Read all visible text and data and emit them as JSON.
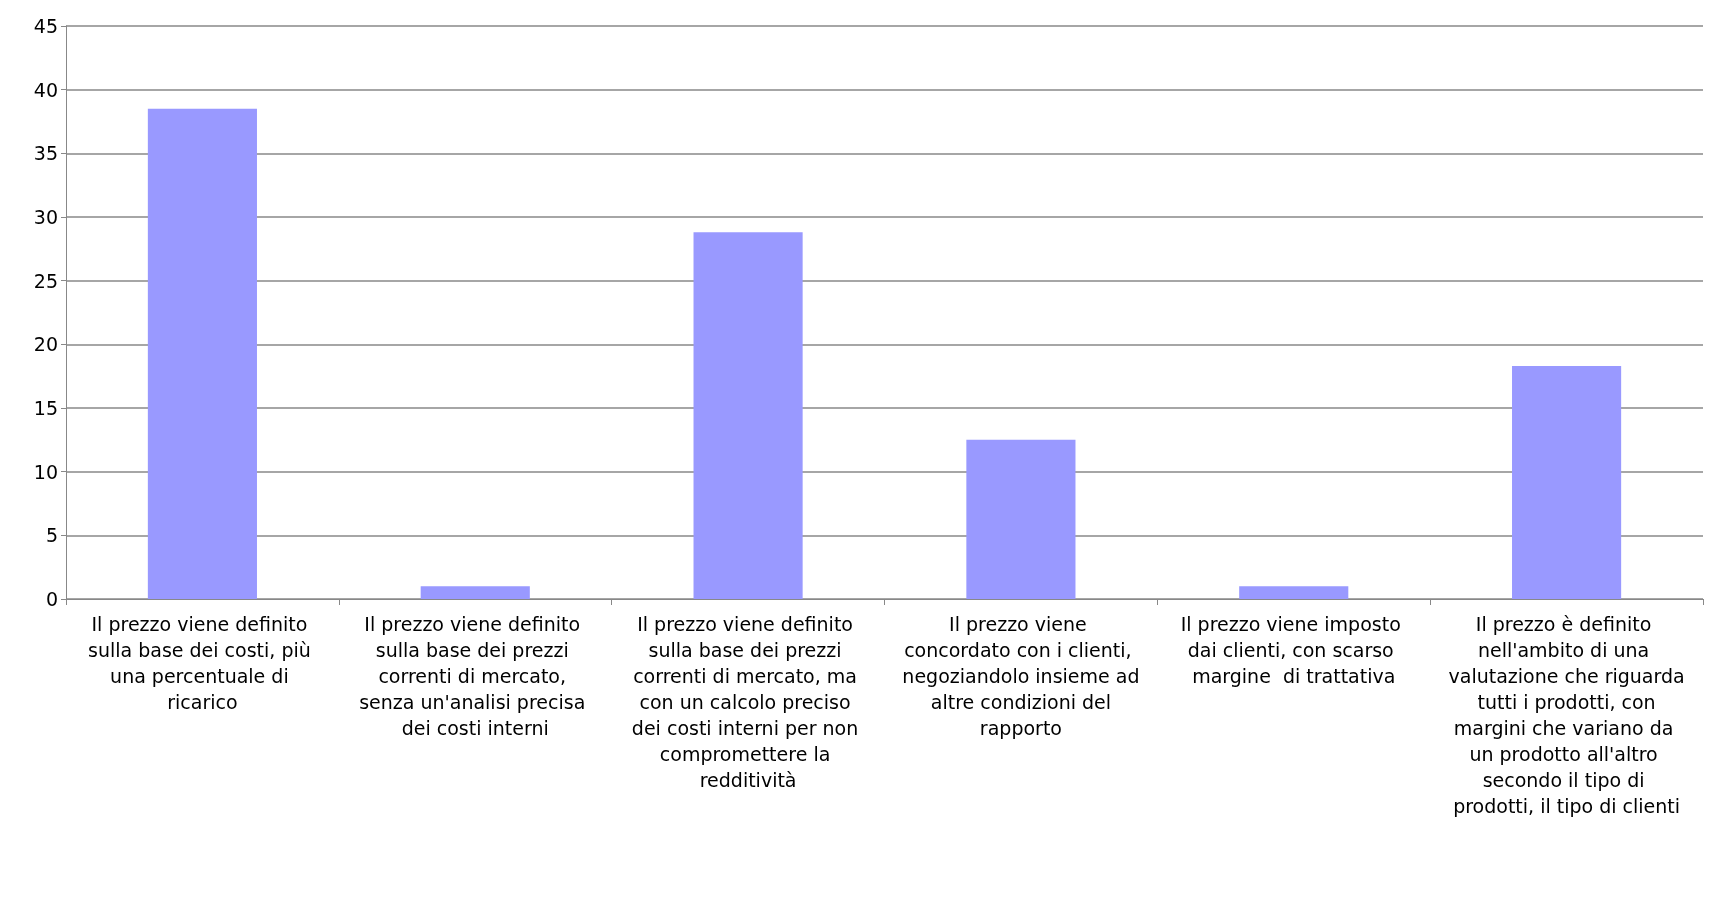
{
  "chart_data": {
    "type": "bar",
    "categories": [
      "Il prezzo viene definito sulla base dei costi, più una percentuale di ricarico",
      "Il prezzo viene definito sulla base dei prezzi correnti di mercato, senza un'analisi precisa dei costi interni",
      "Il prezzo viene definito sulla base dei prezzi correnti di mercato, ma con un calcolo preciso dei costi interni per non compromettere la redditività",
      "Il prezzo viene concordato con i clienti, negoziandolo insieme ad altre condizioni del rapporto",
      "Il prezzo viene imposto dai clienti, con scarso margine  di trattativa",
      "Il prezzo è definito nell'ambito di una valutazione che riguarda tutti i prodotti, con margini che variano da un prodotto all'altro secondo il tipo di prodotti, il tipo di clienti"
    ],
    "values": [
      38.5,
      1,
      28.8,
      12.5,
      1,
      18.3
    ],
    "color": "#9999ff",
    "ylim": [
      0,
      45
    ],
    "yticks": [
      0,
      5,
      10,
      15,
      20,
      25,
      30,
      35,
      40,
      45
    ],
    "grid": "y"
  }
}
